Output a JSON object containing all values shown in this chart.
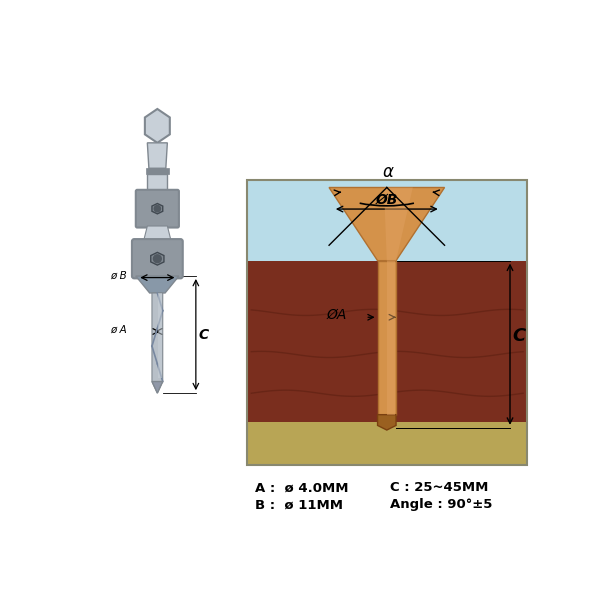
{
  "bg_color": "#ffffff",
  "sky_color": "#b8dce8",
  "wood_color": "#7a2e1e",
  "soil_color": "#b8a555",
  "screw_color_light": "#d4924a",
  "screw_color_dark": "#b07030",
  "screw_tip_color": "#9a6020",
  "labels": {
    "A_line1": "A :  ø 4.0MM",
    "B_line1": "B :  ø 11MM",
    "C_label": "C : 25~45MM",
    "angle_label": "Angle : 90°±5"
  },
  "dim_labels": {
    "alpha": "α",
    "phiB": "ØB",
    "phiA": "ØA",
    "C": "C"
  },
  "left_labels": {
    "phiB": "ø B",
    "phiA": "ø A",
    "C": "C"
  }
}
